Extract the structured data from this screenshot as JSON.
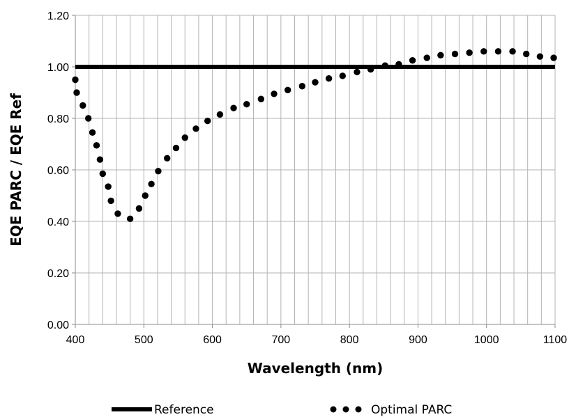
{
  "chart_data": {
    "type": "scatter",
    "title": "",
    "xlabel": "Wavelength (nm)",
    "ylabel": "EQE PARC / EQE Ref",
    "xlim": [
      400,
      1100
    ],
    "ylim": [
      0,
      1.2
    ],
    "x_ticks": [
      "400",
      "500",
      "600",
      "700",
      "800",
      "900",
      "1000",
      "1100"
    ],
    "y_ticks": [
      "0.00",
      "0.20",
      "0.40",
      "0.60",
      "0.80",
      "1.00",
      "1.20"
    ],
    "grid": {
      "vertical_major": 100,
      "vertical_minor": 20,
      "horizontal_major": 0.2
    },
    "legend_position": "bottom",
    "series": [
      {
        "name": "Reference",
        "style": "line",
        "color": "#000000",
        "x": [
          400,
          1100
        ],
        "y": [
          1.0,
          1.0
        ]
      },
      {
        "name": "Optimal PARC",
        "style": "dots",
        "color": "#000000",
        "x": [
          400,
          402,
          411,
          419,
          425,
          431,
          436,
          440,
          448,
          452,
          462,
          480,
          493,
          502,
          511,
          521,
          534,
          547,
          560,
          576,
          593,
          611,
          631,
          650,
          671,
          690,
          710,
          731,
          750,
          770,
          790,
          811,
          831,
          852,
          872,
          892,
          913,
          933,
          954,
          975,
          996,
          1017,
          1038,
          1058,
          1078,
          1098
        ],
        "y": [
          0.95,
          0.9,
          0.85,
          0.8,
          0.745,
          0.695,
          0.64,
          0.585,
          0.535,
          0.48,
          0.43,
          0.41,
          0.45,
          0.5,
          0.545,
          0.595,
          0.645,
          0.685,
          0.725,
          0.76,
          0.79,
          0.815,
          0.84,
          0.855,
          0.875,
          0.895,
          0.91,
          0.925,
          0.94,
          0.955,
          0.965,
          0.98,
          0.99,
          1.005,
          1.01,
          1.025,
          1.035,
          1.045,
          1.05,
          1.055,
          1.06,
          1.06,
          1.06,
          1.05,
          1.04,
          1.035
        ]
      }
    ]
  }
}
